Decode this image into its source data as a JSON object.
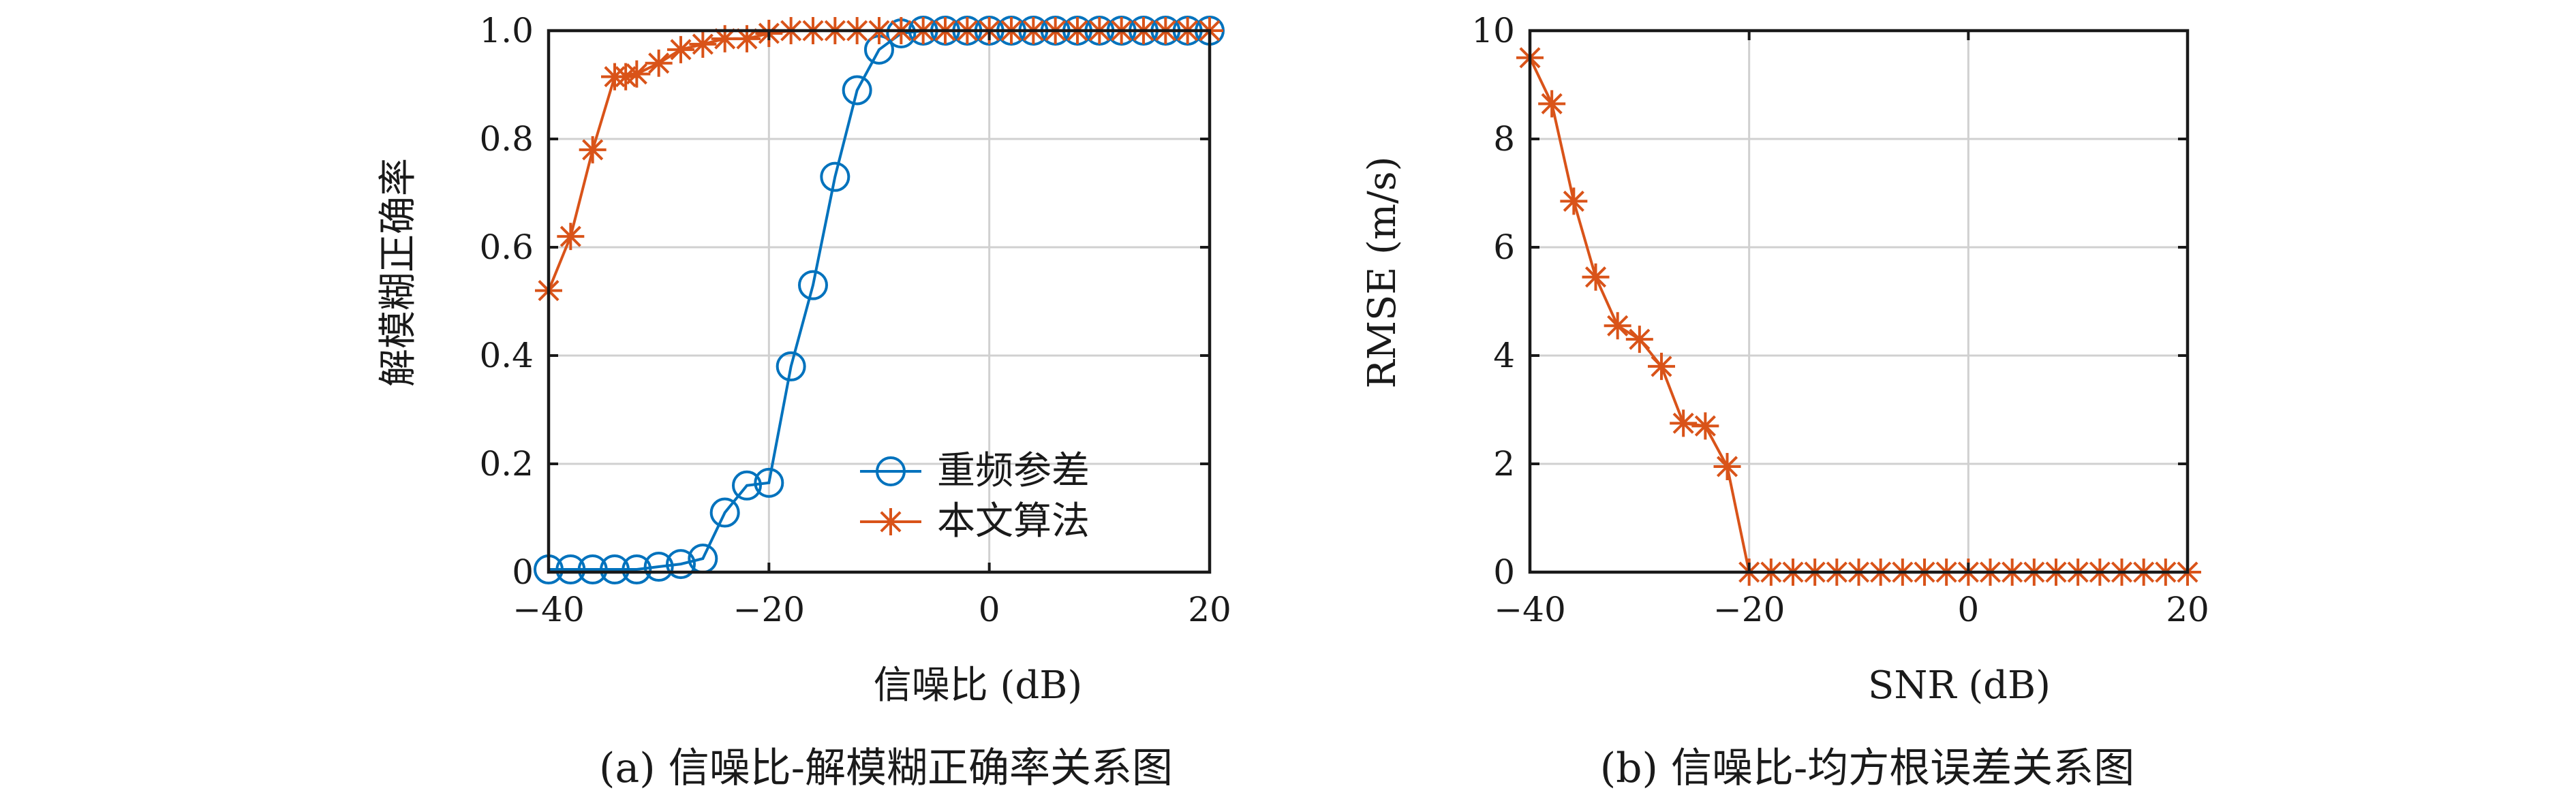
{
  "colors": {
    "blue": "#0072BD",
    "orange": "#D95319"
  },
  "chart_data": [
    {
      "type": "line",
      "caption": "(a) 信噪比-解模糊正确率关系图",
      "xlabel": "信噪比 (dB)",
      "ylabel": "解模糊正确率",
      "xlim": [
        -40,
        20
      ],
      "ylim": [
        0,
        1
      ],
      "xticks": [
        -40,
        -20,
        0,
        20
      ],
      "yticks": [
        0,
        0.2,
        0.4,
        0.6,
        0.8,
        1
      ],
      "xtick_labels": [
        "−40",
        "−20",
        "0",
        "20"
      ],
      "ytick_labels": [
        "0",
        "0.2",
        "0.4",
        "0.6",
        "0.8",
        "1.0"
      ],
      "grid": true,
      "legend_position": "bottom-right",
      "series": [
        {
          "name": "重频参差",
          "color": "#0072BD",
          "marker": "circle",
          "x": [
            -40,
            -38,
            -36,
            -34,
            -32,
            -30,
            -28,
            -26,
            -24,
            -22,
            -20,
            -18,
            -16,
            -14,
            -12,
            -10,
            -8,
            -6,
            -4,
            -2,
            0,
            2,
            4,
            6,
            8,
            10,
            12,
            14,
            16,
            18,
            20
          ],
          "y": [
            0.005,
            0.005,
            0.005,
            0.005,
            0.005,
            0.01,
            0.015,
            0.025,
            0.11,
            0.16,
            0.165,
            0.38,
            0.53,
            0.73,
            0.89,
            0.965,
            0.995,
            1,
            1,
            1,
            1,
            1,
            1,
            1,
            1,
            1,
            1,
            1,
            1,
            1,
            1
          ]
        },
        {
          "name": "本文算法",
          "color": "#D95319",
          "marker": "asterisk",
          "x": [
            -40,
            -38,
            -36,
            -34,
            -33,
            -32,
            -30,
            -28,
            -26,
            -24,
            -22,
            -20,
            -18,
            -16,
            -14,
            -12,
            -10,
            -8,
            -6,
            -4,
            -2,
            0,
            2,
            4,
            6,
            8,
            10,
            12,
            14,
            16,
            18,
            20
          ],
          "y": [
            0.52,
            0.62,
            0.78,
            0.915,
            0.915,
            0.92,
            0.94,
            0.965,
            0.975,
            0.985,
            0.985,
            0.995,
            1,
            1,
            1,
            1,
            1,
            1,
            1,
            1,
            1,
            1,
            1,
            1,
            1,
            1,
            1,
            1,
            1,
            1,
            1,
            1
          ]
        }
      ]
    },
    {
      "type": "line",
      "caption": "(b) 信噪比-均方根误差关系图",
      "xlabel": "SNR (dB)",
      "ylabel": "RMSE (m/s)",
      "xlim": [
        -40,
        20
      ],
      "ylim": [
        0,
        10
      ],
      "xticks": [
        -40,
        -20,
        0,
        20
      ],
      "yticks": [
        0,
        2,
        4,
        6,
        8,
        10
      ],
      "xtick_labels": [
        "−40",
        "−20",
        "0",
        "20"
      ],
      "ytick_labels": [
        "0",
        "2",
        "4",
        "6",
        "8",
        "10"
      ],
      "grid": true,
      "series": [
        {
          "color": "#D95319",
          "marker": "asterisk",
          "x": [
            -40,
            -38,
            -36,
            -34,
            -32,
            -30,
            -28,
            -26,
            -24,
            -22,
            -20,
            -18,
            -16,
            -14,
            -12,
            -10,
            -8,
            -6,
            -4,
            -2,
            0,
            2,
            4,
            6,
            8,
            10,
            12,
            14,
            16,
            18,
            20
          ],
          "y": [
            9.5,
            8.65,
            6.85,
            5.45,
            4.55,
            4.3,
            3.8,
            2.75,
            2.7,
            1.95,
            0,
            0,
            0,
            0,
            0,
            0,
            0,
            0,
            0,
            0,
            0,
            0,
            0,
            0,
            0,
            0,
            0,
            0,
            0,
            0,
            0
          ]
        }
      ]
    }
  ]
}
